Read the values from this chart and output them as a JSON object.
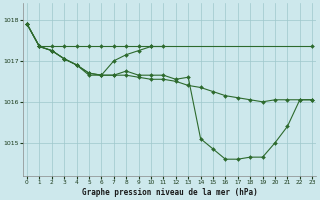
{
  "title": "Graphe pression niveau de la mer (hPa)",
  "background_color": "#cde8ec",
  "grid_color": "#9ec8cc",
  "line_color": "#2d6a2d",
  "x_ticks": [
    0,
    1,
    2,
    3,
    4,
    5,
    6,
    7,
    8,
    9,
    10,
    11,
    12,
    13,
    14,
    15,
    16,
    17,
    18,
    19,
    20,
    21,
    22,
    23
  ],
  "y_ticks": [
    1015,
    1016,
    1017,
    1018
  ],
  "ylim": [
    1014.2,
    1018.4
  ],
  "xlim": [
    -0.3,
    23.3
  ],
  "series": [
    {
      "x": [
        0,
        1,
        2,
        3,
        4,
        5,
        6,
        7,
        8,
        9,
        10,
        23
      ],
      "y": [
        1017.9,
        1017.35,
        1017.35,
        1017.35,
        1017.35,
        1017.35,
        1017.35,
        1017.35,
        1017.35,
        1017.35,
        1017.35,
        1017.35
      ]
    },
    {
      "x": [
        0,
        1,
        2,
        3,
        4,
        5,
        6,
        7,
        8,
        9,
        10,
        11,
        12,
        13,
        14,
        15,
        16,
        17,
        18,
        19,
        20,
        21,
        22,
        23
      ],
      "y": [
        1017.9,
        1017.35,
        1017.25,
        1017.05,
        1016.9,
        1016.7,
        1016.65,
        1016.65,
        1016.65,
        1016.6,
        1016.55,
        1016.55,
        1016.5,
        1016.4,
        1016.35,
        1016.25,
        1016.15,
        1016.1,
        1016.05,
        1016.0,
        1016.05,
        1016.05,
        1016.05,
        1016.05
      ]
    },
    {
      "x": [
        0,
        1,
        2,
        3,
        4,
        5,
        6,
        7,
        8,
        9,
        10,
        11,
        12,
        13,
        14,
        15,
        16,
        17,
        18,
        19,
        20,
        21,
        22,
        23
      ],
      "y": [
        1017.9,
        1017.35,
        1017.25,
        1017.05,
        1016.9,
        1016.7,
        1016.65,
        1016.65,
        1016.75,
        1016.65,
        1016.65,
        1016.65,
        1016.55,
        1016.6,
        1015.1,
        1014.85,
        1014.6,
        1014.6,
        1014.65,
        1014.65,
        1015.0,
        1015.4,
        1016.05,
        1016.05
      ]
    },
    {
      "x": [
        0,
        1,
        2,
        3,
        4,
        5,
        6,
        7,
        8,
        9,
        10,
        11
      ],
      "y": [
        1017.9,
        1017.35,
        1017.25,
        1017.05,
        1016.9,
        1016.65,
        1016.65,
        1017.0,
        1017.15,
        1017.25,
        1017.35,
        1017.35
      ]
    }
  ]
}
